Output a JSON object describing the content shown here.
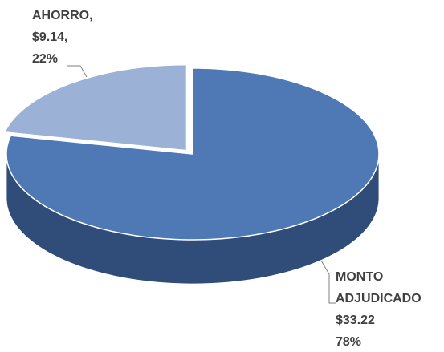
{
  "chart_data": {
    "type": "pie",
    "categories": [
      "AHORRO,",
      "MONTO ADJUDICADO"
    ],
    "values": [
      9.14,
      33.22
    ],
    "value_labels": [
      "$9.14,",
      "$33.22"
    ],
    "percents": [
      22,
      78
    ],
    "percent_labels": [
      "22%",
      "78%"
    ],
    "colors": [
      "#9cb1d6",
      "#4e79b5"
    ],
    "side_colors": [
      "#6f86ad",
      "#2f4d78"
    ],
    "exploded": [
      true,
      false
    ]
  }
}
